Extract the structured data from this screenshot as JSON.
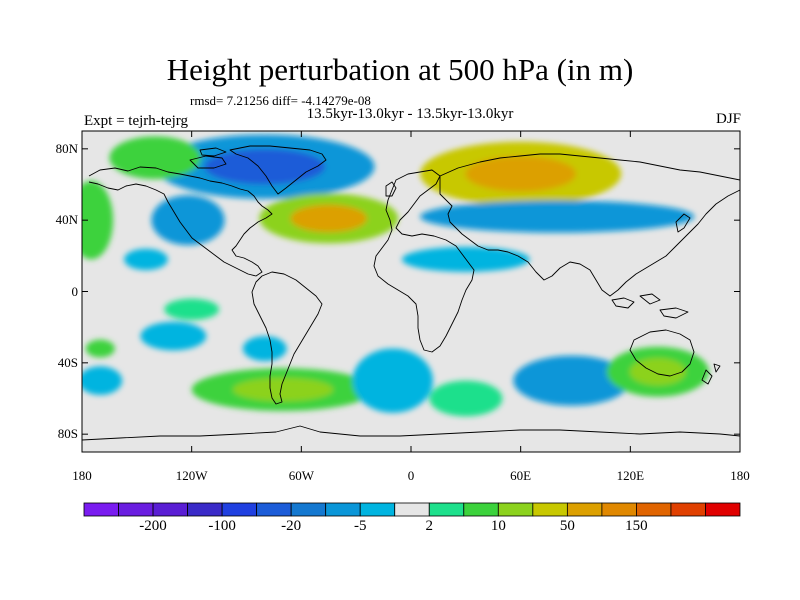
{
  "title": "Height perturbation at 500 hPa (in m)",
  "stats": "rmsd= 7.21256 diff= -4.14279e-08",
  "subtitle": "13.5kyr-13.0kyr - 13.5kyr-13.0kyr",
  "expt": "Expt = tejrh-tejrg",
  "season": "DJF",
  "map": {
    "lon_range": [
      -180,
      180
    ],
    "lat_range": [
      -90,
      90
    ],
    "x_ticks": [
      {
        "lon": -180,
        "label": "180"
      },
      {
        "lon": -120,
        "label": "120W"
      },
      {
        "lon": -60,
        "label": "60W"
      },
      {
        "lon": 0,
        "label": "0"
      },
      {
        "lon": 60,
        "label": "60E"
      },
      {
        "lon": 120,
        "label": "120E"
      },
      {
        "lon": 180,
        "label": "180"
      }
    ],
    "y_ticks": [
      {
        "lat": 80,
        "label": "80N"
      },
      {
        "lat": 40,
        "label": "40N"
      },
      {
        "lat": 0,
        "label": "0"
      },
      {
        "lat": -40,
        "label": "40S"
      },
      {
        "lat": -80,
        "label": "80S"
      }
    ],
    "background_color": "#e6e6e6",
    "anomalies": [
      {
        "lon": -80,
        "lat": 70,
        "rx": 60,
        "ry": 18,
        "level": -15,
        "core": -40
      },
      {
        "lon": -122,
        "lat": 40,
        "rx": 20,
        "ry": 14,
        "level": -10
      },
      {
        "lon": -45,
        "lat": 41,
        "rx": 38,
        "ry": 14,
        "level": 15,
        "core": 40
      },
      {
        "lon": 60,
        "lat": 66,
        "rx": 55,
        "ry": 18,
        "level": 20,
        "core": 50
      },
      {
        "lon": 80,
        "lat": 42,
        "rx": 75,
        "ry": 9,
        "level": -10,
        "core": -15
      },
      {
        "lon": -140,
        "lat": 75,
        "rx": 25,
        "ry": 12,
        "level": 8
      },
      {
        "lon": -175,
        "lat": 40,
        "rx": 12,
        "ry": 22,
        "level": 8
      },
      {
        "lon": -145,
        "lat": 18,
        "rx": 12,
        "ry": 6,
        "level": -5
      },
      {
        "lon": 30,
        "lat": 18,
        "rx": 35,
        "ry": 7,
        "level": -5
      },
      {
        "lon": -120,
        "lat": -10,
        "rx": 15,
        "ry": 6,
        "level": 4
      },
      {
        "lon": -130,
        "lat": -25,
        "rx": 18,
        "ry": 8,
        "level": -5
      },
      {
        "lon": -80,
        "lat": -32,
        "rx": 12,
        "ry": 7,
        "level": -5
      },
      {
        "lon": -70,
        "lat": -55,
        "rx": 50,
        "ry": 12,
        "level": 8,
        "core": 15
      },
      {
        "lon": -10,
        "lat": -50,
        "rx": 22,
        "ry": 18,
        "level": -5
      },
      {
        "lon": 30,
        "lat": -60,
        "rx": 20,
        "ry": 10,
        "level": 4
      },
      {
        "lon": 88,
        "lat": -50,
        "rx": 32,
        "ry": 14,
        "level": -10,
        "core": -15
      },
      {
        "lon": 135,
        "lat": -45,
        "rx": 28,
        "ry": 14,
        "level": 8,
        "core": 15
      },
      {
        "lon": -170,
        "lat": -32,
        "rx": 8,
        "ry": 5,
        "level": 5
      },
      {
        "lon": -170,
        "lat": -50,
        "rx": 12,
        "ry": 8,
        "level": -5
      }
    ],
    "coastline_color": "#000000"
  },
  "colorbar": {
    "colors": [
      "#7a1cf0",
      "#6a1de0",
      "#5a1ed4",
      "#3a2ac8",
      "#2040e0",
      "#1c5cd8",
      "#1478d0",
      "#0a96d8",
      "#00b4e0",
      "#e6e6e6",
      "#1ee08c",
      "#3cd23c",
      "#8cd21e",
      "#c8c800",
      "#dca000",
      "#e08800",
      "#e06400",
      "#e04000",
      "#e00000"
    ],
    "labels": [
      {
        "text": "-200",
        "index": 2
      },
      {
        "text": "-100",
        "index": 4
      },
      {
        "text": "-20",
        "index": 6
      },
      {
        "text": "-5",
        "index": 8
      },
      {
        "text": "2",
        "index": 10
      },
      {
        "text": "10",
        "index": 12
      },
      {
        "text": "50",
        "index": 14
      },
      {
        "text": "150",
        "index": 16
      }
    ]
  }
}
